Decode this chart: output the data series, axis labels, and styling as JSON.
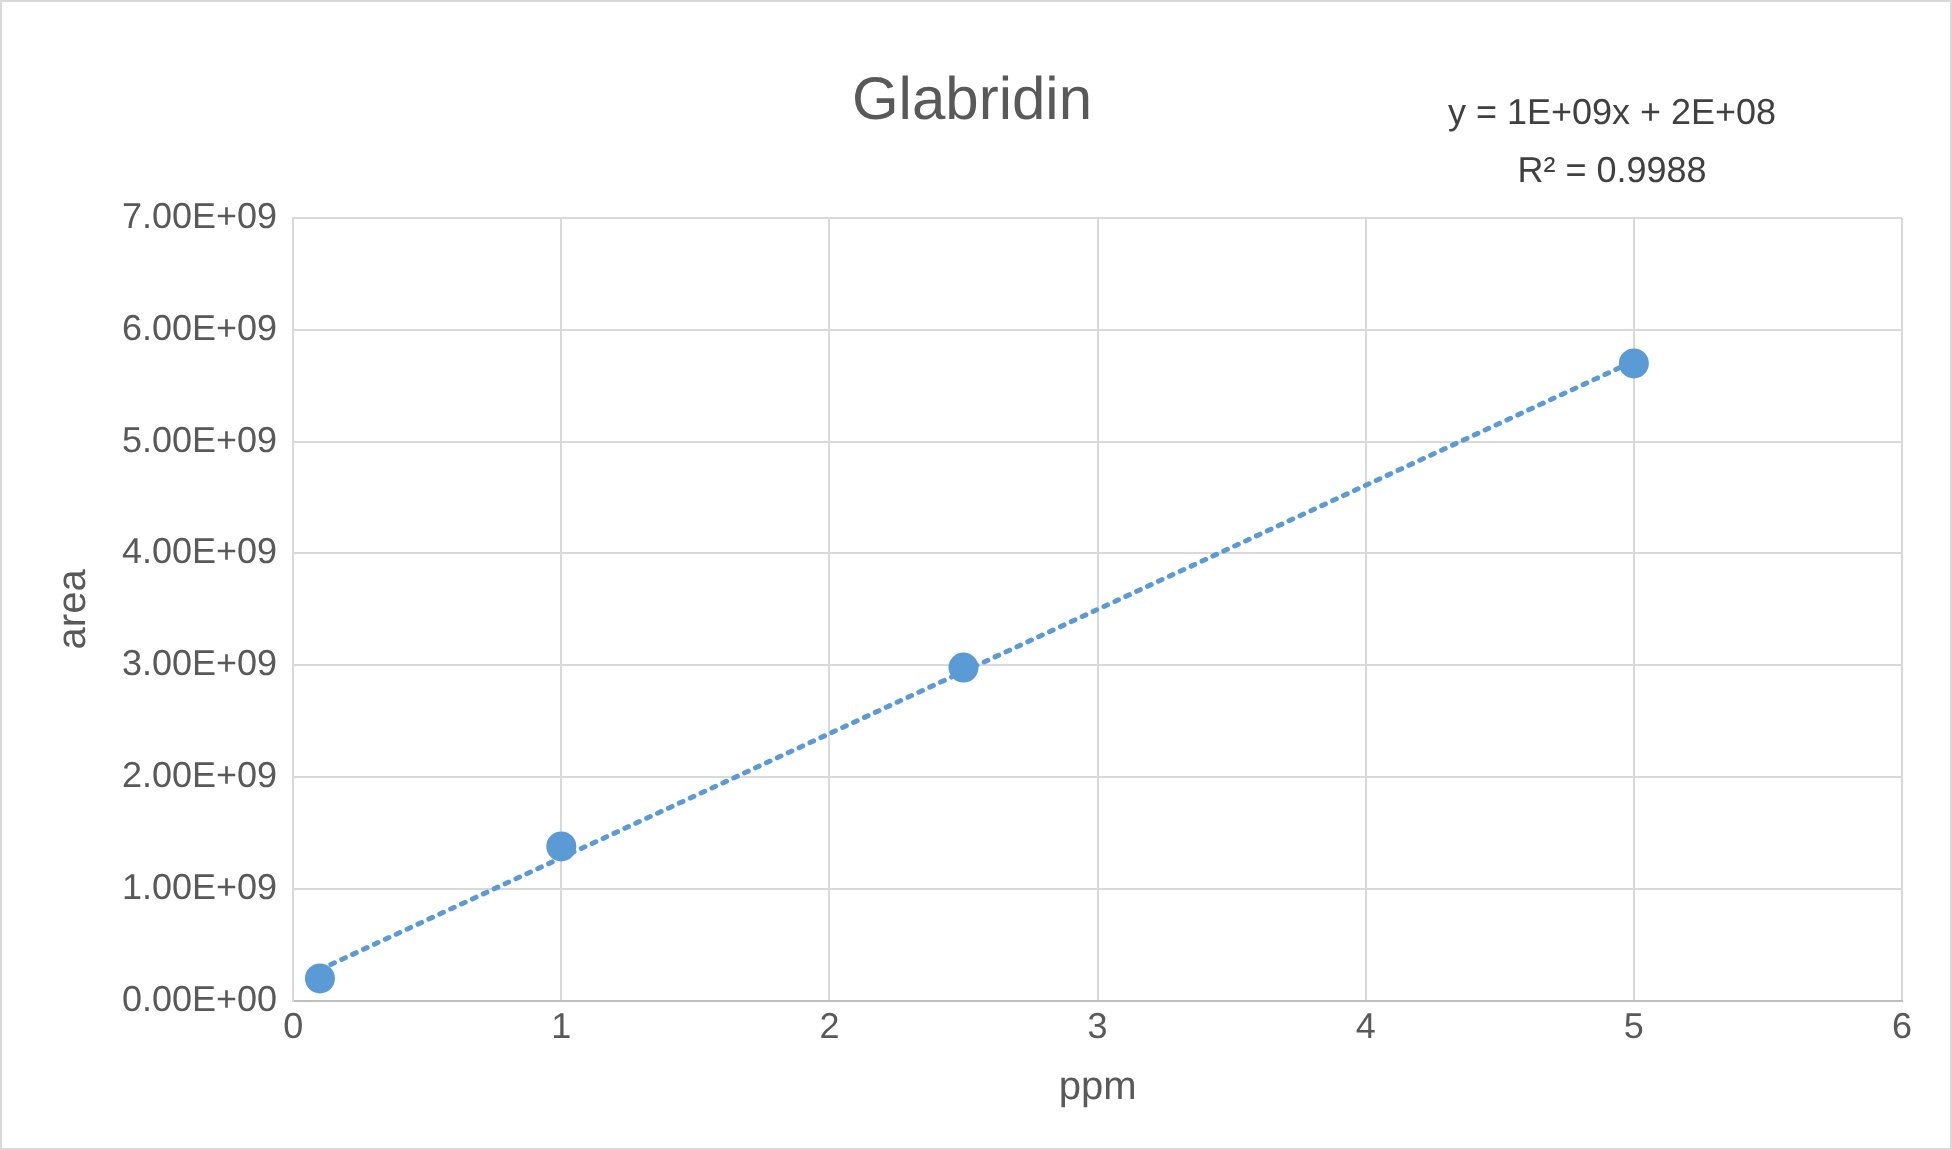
{
  "chart_data": {
    "type": "scatter",
    "title": "Glabridin",
    "xlabel": "ppm",
    "ylabel": "area",
    "annotations": [
      "y = 1E+09x + 2E+08",
      "R² = 0.9988"
    ],
    "series": [
      {
        "type": "scatter",
        "color": "#5b9bd5",
        "x": [
          0.1,
          1,
          2.5,
          5
        ],
        "values": [
          200000000,
          1380000000,
          2980000000,
          5700000000
        ],
        "marker": "circle"
      },
      {
        "type": "line",
        "color": "#5b9bd5",
        "x": [
          0.1,
          5
        ],
        "values": [
          280000000,
          5720000000
        ],
        "line_style": "dotted",
        "marker": "none"
      }
    ],
    "xlim": [
      0,
      6
    ],
    "xticks": [
      0,
      1,
      2,
      3,
      4,
      5,
      6
    ],
    "ylim": [
      0,
      7000000000
    ],
    "yticks": [
      {
        "value": 0,
        "label": "0.00E+00"
      },
      {
        "value": 1000000000,
        "label": "1.00E+09"
      },
      {
        "value": 2000000000,
        "label": "2.00E+09"
      },
      {
        "value": 3000000000,
        "label": "3.00E+09"
      },
      {
        "value": 4000000000,
        "label": "4.00E+09"
      },
      {
        "value": 5000000000,
        "label": "5.00E+09"
      },
      {
        "value": 6000000000,
        "label": "6.00E+09"
      },
      {
        "value": 7000000000,
        "label": "7.00E+09"
      }
    ],
    "grid": true,
    "legend": false
  }
}
